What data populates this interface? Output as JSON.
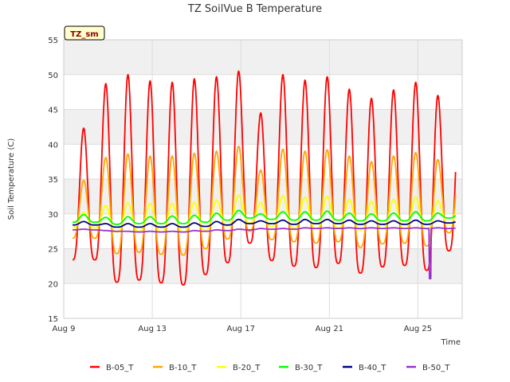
{
  "site_badge": "TZ_sm",
  "chart_data": {
    "type": "line",
    "title": "TZ SoilVue B Temperature",
    "xlabel": "Time",
    "ylabel": "Soil Temperature (C)",
    "ylim": [
      15,
      55
    ],
    "xlim": [
      "Aug 9",
      "Aug 27"
    ],
    "x_unit": "day of August",
    "y_ticks": [
      15,
      20,
      25,
      30,
      35,
      40,
      45,
      50,
      55
    ],
    "x_ticks": [
      {
        "label": "Aug 9",
        "day": 9
      },
      {
        "label": "Aug 13",
        "day": 13
      },
      {
        "label": "Aug 17",
        "day": 17
      },
      {
        "label": "Aug 21",
        "day": 21
      },
      {
        "label": "Aug 25",
        "day": 25
      }
    ],
    "grid": true,
    "background_bands": true,
    "legend_position": "bottom",
    "x_day_of_august": [
      9.9,
      10.9,
      11.9,
      12.9,
      13.9,
      14.9,
      15.9,
      16.9,
      17.9,
      18.9,
      19.9,
      20.9,
      21.9,
      22.9,
      23.9,
      24.9,
      25.9
    ],
    "series": [
      {
        "name": "B-05_T",
        "color": "#ff0000",
        "daily_max": [
          42.3,
          48.7,
          50.0,
          49.1,
          48.9,
          49.4,
          49.7,
          50.5,
          44.5,
          50.0,
          49.2,
          49.7,
          47.9,
          46.6,
          47.8,
          48.9,
          47.0
        ],
        "daily_min": [
          23.4,
          20.2,
          20.5,
          20.1,
          19.8,
          21.3,
          23.0,
          25.8,
          23.3,
          22.5,
          22.3,
          22.9,
          21.5,
          22.4,
          22.6,
          21.9,
          24.7
        ]
      },
      {
        "name": "B-10_T",
        "color": "#ffa500",
        "daily_max": [
          34.8,
          38.1,
          38.6,
          38.3,
          38.3,
          38.7,
          39.0,
          39.7,
          36.3,
          39.3,
          39.0,
          39.2,
          38.3,
          37.5,
          38.3,
          38.8,
          37.8
        ],
        "daily_min": [
          26.5,
          24.3,
          24.5,
          24.2,
          24.1,
          25.0,
          26.4,
          27.5,
          26.3,
          26.0,
          25.8,
          26.0,
          25.2,
          25.7,
          25.8,
          25.4,
          27.3
        ]
      },
      {
        "name": "B-20_T",
        "color": "#ffff00",
        "daily_max": [
          30.2,
          31.2,
          31.6,
          31.5,
          31.5,
          31.7,
          32.0,
          32.7,
          31.6,
          32.6,
          32.4,
          32.5,
          32.1,
          31.8,
          32.1,
          32.4,
          31.9
        ],
        "daily_min": [
          28.0,
          27.4,
          27.5,
          27.4,
          27.4,
          27.7,
          28.3,
          28.7,
          28.2,
          28.0,
          27.9,
          28.0,
          27.7,
          27.9,
          27.9,
          27.8,
          28.6
        ]
      },
      {
        "name": "B-30_T",
        "color": "#00ff00",
        "daily_max": [
          29.9,
          29.5,
          29.6,
          29.6,
          29.7,
          29.8,
          30.1,
          30.5,
          30.0,
          30.3,
          30.3,
          30.4,
          30.1,
          30.0,
          30.1,
          30.3,
          30.1
        ],
        "daily_min": [
          28.8,
          28.5,
          28.6,
          28.6,
          28.6,
          28.8,
          29.1,
          29.4,
          29.2,
          29.1,
          29.1,
          29.1,
          29.0,
          29.0,
          29.0,
          29.0,
          29.4
        ]
      },
      {
        "name": "B-40_T",
        "color": "#00008b",
        "daily_max": [
          28.9,
          28.6,
          28.6,
          28.6,
          28.6,
          28.7,
          28.9,
          29.2,
          29.0,
          29.1,
          29.2,
          29.2,
          29.1,
          29.0,
          29.0,
          29.1,
          29.0
        ],
        "daily_min": [
          28.4,
          28.1,
          28.1,
          28.1,
          28.1,
          28.2,
          28.4,
          28.6,
          28.6,
          28.5,
          28.6,
          28.6,
          28.5,
          28.5,
          28.5,
          28.5,
          28.7
        ]
      },
      {
        "name": "B-50_T",
        "color": "#9932cc",
        "daily_max": [
          27.8,
          27.6,
          27.5,
          27.5,
          27.5,
          27.6,
          27.7,
          27.8,
          27.9,
          27.9,
          28.0,
          28.0,
          28.0,
          28.0,
          28.0,
          28.0,
          28.0
        ],
        "daily_min": [
          27.7,
          27.5,
          27.4,
          27.4,
          27.4,
          27.5,
          27.6,
          27.7,
          27.8,
          27.8,
          27.9,
          27.9,
          27.9,
          27.9,
          27.9,
          27.9,
          27.9
        ],
        "dropout": {
          "day": 25.55,
          "value": 20.7
        }
      }
    ]
  }
}
